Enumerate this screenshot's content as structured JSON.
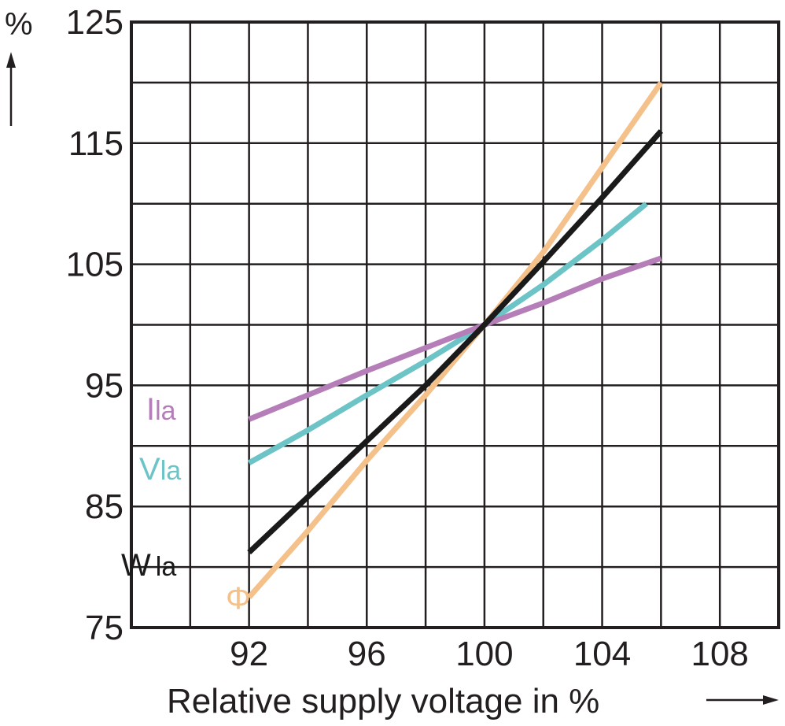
{
  "chart_data": {
    "type": "line",
    "xlabel": "Relative supply voltage in %",
    "ylabel": "%",
    "xlim": [
      88,
      110
    ],
    "ylim": [
      75,
      125
    ],
    "x_ticks": [
      "92",
      "96",
      "100",
      "104",
      "108"
    ],
    "x_tick_values": [
      92,
      96,
      100,
      104,
      108
    ],
    "y_ticks": [
      "125",
      "115",
      "105",
      "95",
      "85",
      "75"
    ],
    "y_tick_values": [
      125,
      115,
      105,
      95,
      85,
      75
    ],
    "grid": true,
    "series": [
      {
        "name": "Ila",
        "label_main": "I",
        "label_sub": "la",
        "color": "#b57eb8",
        "x": [
          92,
          96,
          100,
          102,
          104,
          106
        ],
        "y": [
          92.2,
          96.2,
          100,
          101.8,
          103.8,
          105.5
        ]
      },
      {
        "name": "Vla",
        "label_main": "V",
        "label_sub": "la",
        "color": "#6cc4c6",
        "x": [
          92,
          94,
          96,
          98,
          100,
          102,
          104,
          105.5
        ],
        "y": [
          88.6,
          91.3,
          94.2,
          97,
          100,
          103.3,
          107,
          110
        ]
      },
      {
        "name": "Wla",
        "label_main": "W",
        "label_sub": "la",
        "color": "#1a1a1a",
        "x": [
          92,
          94,
          96,
          98,
          100,
          102,
          104,
          106
        ],
        "y": [
          81.2,
          85.8,
          90.4,
          95,
          100,
          105.2,
          110.5,
          116
        ]
      },
      {
        "name": "Φ",
        "label_main": "Φ",
        "label_sub": "",
        "color": "#f5c18b",
        "x": [
          92,
          94,
          96,
          98,
          100,
          102,
          104,
          106
        ],
        "y": [
          77.5,
          83,
          88.8,
          94.2,
          100,
          106,
          113,
          120
        ]
      }
    ]
  }
}
